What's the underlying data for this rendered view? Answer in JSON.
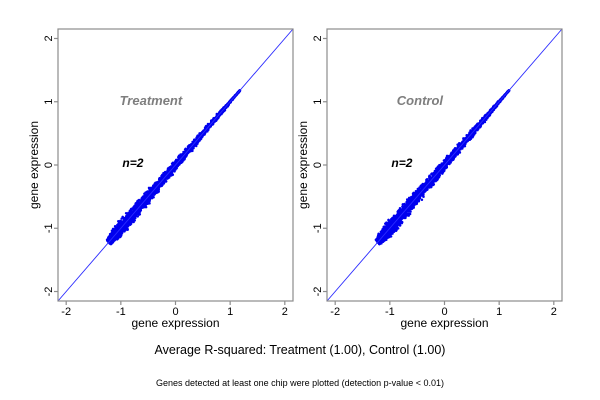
{
  "captions": {
    "average_r_squared": "Average R-squared: Treatment (1.00), Control (1.00)",
    "detection_note": "Genes detected at least one chip were plotted (detection p-value < 0.01)"
  },
  "chart_data": {
    "type": "scatter",
    "layout": "two side-by-side replicate-agreement scatter panels",
    "grid": false,
    "legend_position": "none",
    "axes": {
      "xlabel": "gene expression",
      "ylabel": "gene expression",
      "xlim": [
        -2.15,
        2.15
      ],
      "ylim": [
        -2.15,
        2.15
      ],
      "x_ticks": [
        -2,
        -1,
        0,
        1,
        2
      ],
      "y_ticks": [
        -2,
        -1,
        0,
        1,
        2
      ]
    },
    "identity_line": {
      "equation": "y = x",
      "from": -2.15,
      "to": 2.15
    },
    "colors": {
      "points": "#0000ee",
      "identity_line": "#2a2aff",
      "axis": "#8c8c8c",
      "panel_title": "#7e7e7e",
      "annotation": "#000000",
      "tick_label": "#000000"
    },
    "panels": [
      {
        "title": "Treatment",
        "annotation": "n=2",
        "r_squared": "1.00",
        "title_pos": {
          "x": -0.45,
          "y": 0.95
        },
        "annotation_pos": {
          "x": -0.78,
          "y": -0.03
        },
        "cloud": {
          "description": "dense blue comet of gene expression values (chip 1 vs chip 2) hugging the identity line, widest near -1 and tapering toward +1.2",
          "t_min": -1.22,
          "t_max": 1.18,
          "n_points": 2800,
          "seed": 911,
          "half_width_base": 0.018,
          "half_width_slope": 0.052
        }
      },
      {
        "title": "Control",
        "annotation": "n=2",
        "r_squared": "1.00",
        "title_pos": {
          "x": -0.45,
          "y": 0.95
        },
        "annotation_pos": {
          "x": -0.78,
          "y": -0.03
        },
        "cloud": {
          "description": "dense blue comet of gene expression values (chip 1 vs chip 2) hugging the identity line, widest near -1 and tapering toward +1.2",
          "t_min": -1.22,
          "t_max": 1.18,
          "n_points": 2800,
          "seed": 417,
          "half_width_base": 0.018,
          "half_width_slope": 0.057
        }
      }
    ]
  }
}
